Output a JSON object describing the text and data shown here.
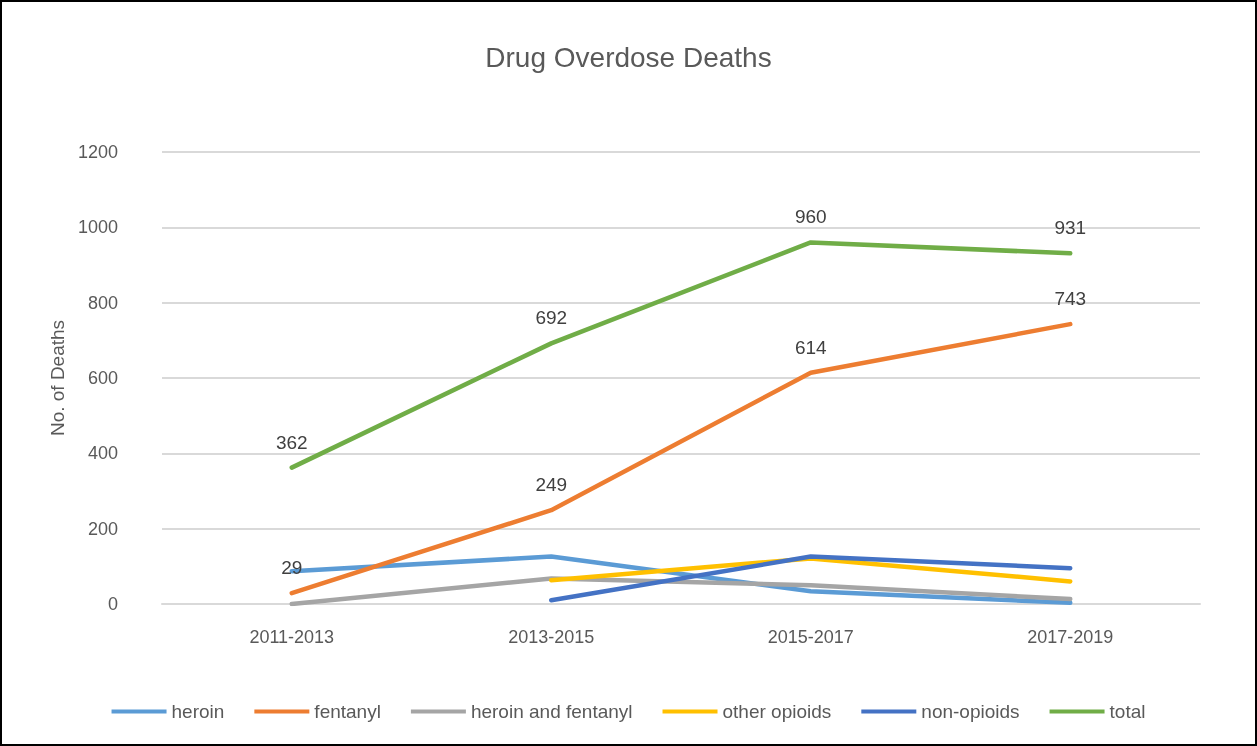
{
  "chart_data": {
    "type": "line",
    "title": "Drug Overdose Deaths",
    "ylabel": "No. of Deaths",
    "categories": [
      "2011-2013",
      "2013-2015",
      "2015-2017",
      "2017-2019"
    ],
    "series": [
      {
        "name": "heroin",
        "color": "#5b9bd5",
        "values": [
          87,
          126,
          34,
          3
        ]
      },
      {
        "name": "fentanyl",
        "color": "#ed7d31",
        "values": [
          29,
          249,
          614,
          743
        ],
        "value_labels": [
          "29",
          "249",
          "614",
          "743"
        ]
      },
      {
        "name": "heroin and fentanyl",
        "color": "#a5a5a5",
        "values": [
          0,
          68,
          50,
          13
        ]
      },
      {
        "name": "other opioids",
        "color": "#ffc000",
        "values": [
          null,
          63,
          121,
          60
        ]
      },
      {
        "name": "non-opioids",
        "color": "#4472c4",
        "values": [
          null,
          10,
          126,
          95
        ]
      },
      {
        "name": "total",
        "color": "#70ad47",
        "values": [
          362,
          692,
          960,
          931
        ],
        "value_labels": [
          "362",
          "692",
          "960",
          "931"
        ]
      }
    ],
    "ylim": [
      0,
      1200
    ],
    "yticks": [
      0,
      200,
      400,
      600,
      800,
      1000,
      1200
    ],
    "grid": "y",
    "legend": "bottom",
    "marker": "none",
    "line_style": "solid"
  }
}
